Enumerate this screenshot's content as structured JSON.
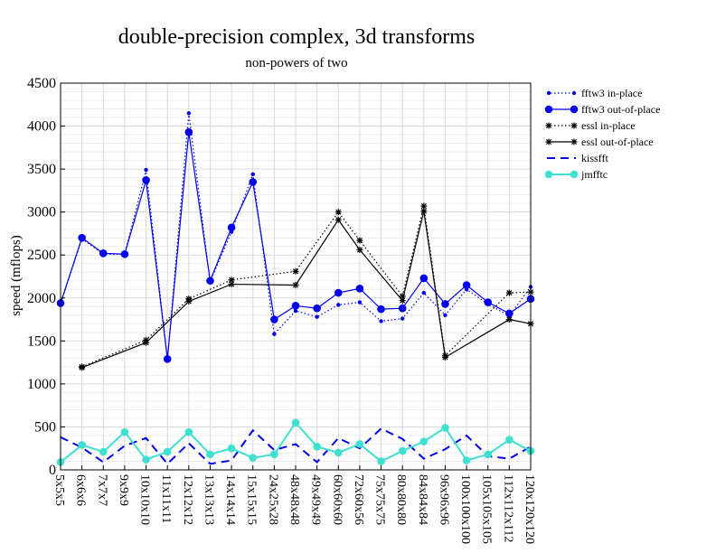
{
  "chart_data": {
    "type": "line",
    "title": "double-precision complex, 3d transforms",
    "subtitle": "non-powers of two",
    "ylabel": "speed (mflops)",
    "ylim": [
      0,
      4500
    ],
    "yticks": [
      0,
      500,
      1000,
      1500,
      2000,
      2500,
      3000,
      3500,
      4000,
      4500
    ],
    "grid": true,
    "legend_position": "right",
    "categories": [
      "5x5x5",
      "6x6x6",
      "7x7x7",
      "9x9x9",
      "10x10x10",
      "11x11x11",
      "12x12x12",
      "13x13x13",
      "14x14x14",
      "15x15x15",
      "24x25x28",
      "48x48x48",
      "49x49x49",
      "60x60x60",
      "72x60x56",
      "75x75x75",
      "80x80x80",
      "84x84x84",
      "96x96x96",
      "100x100x100",
      "105x105x105",
      "112x112x112",
      "120x120x120"
    ],
    "series": [
      {
        "name": "fftw3 in-place",
        "color": "#0000ee",
        "line": "dotted",
        "marker": "small-dot",
        "values": [
          1930,
          2690,
          2510,
          2510,
          3490,
          1290,
          4150,
          2190,
          2770,
          3440,
          1580,
          1850,
          1780,
          1920,
          1950,
          1730,
          1760,
          2060,
          1800,
          2100,
          1930,
          1790,
          2130
        ]
      },
      {
        "name": "fftw3 out-of-place",
        "color": "#0000ee",
        "line": "solid",
        "marker": "dot",
        "values": [
          1940,
          2700,
          2520,
          2510,
          3370,
          1290,
          3930,
          2200,
          2820,
          3350,
          1750,
          1910,
          1880,
          2060,
          2110,
          1870,
          1880,
          2230,
          1930,
          2150,
          1950,
          1820,
          1990
        ]
      },
      {
        "name": "essl in-place",
        "color": "#000000",
        "line": "dotted",
        "marker": "star",
        "values": [
          null,
          1200,
          null,
          null,
          1510,
          null,
          1990,
          null,
          2210,
          null,
          null,
          2310,
          null,
          3000,
          2670,
          null,
          2020,
          3070,
          1330,
          null,
          null,
          2060,
          2070
        ]
      },
      {
        "name": "essl out-of-place",
        "color": "#000000",
        "line": "solid",
        "marker": "star",
        "values": [
          null,
          1190,
          null,
          null,
          1480,
          null,
          1960,
          null,
          2160,
          null,
          null,
          2150,
          null,
          2910,
          2560,
          null,
          1970,
          3010,
          1310,
          null,
          null,
          1750,
          1700
        ]
      },
      {
        "name": "kissfft",
        "color": "#0000ee",
        "line": "dashed",
        "marker": "none",
        "values": [
          380,
          260,
          90,
          280,
          370,
          70,
          310,
          70,
          110,
          460,
          230,
          300,
          90,
          370,
          250,
          480,
          360,
          130,
          240,
          400,
          160,
          130,
          270
        ]
      },
      {
        "name": "jmfftc",
        "color": "#40e0d0",
        "line": "solid",
        "marker": "dot",
        "values": [
          90,
          290,
          210,
          440,
          120,
          210,
          440,
          180,
          250,
          140,
          180,
          550,
          270,
          200,
          300,
          100,
          220,
          330,
          490,
          110,
          180,
          350,
          220
        ]
      }
    ]
  }
}
